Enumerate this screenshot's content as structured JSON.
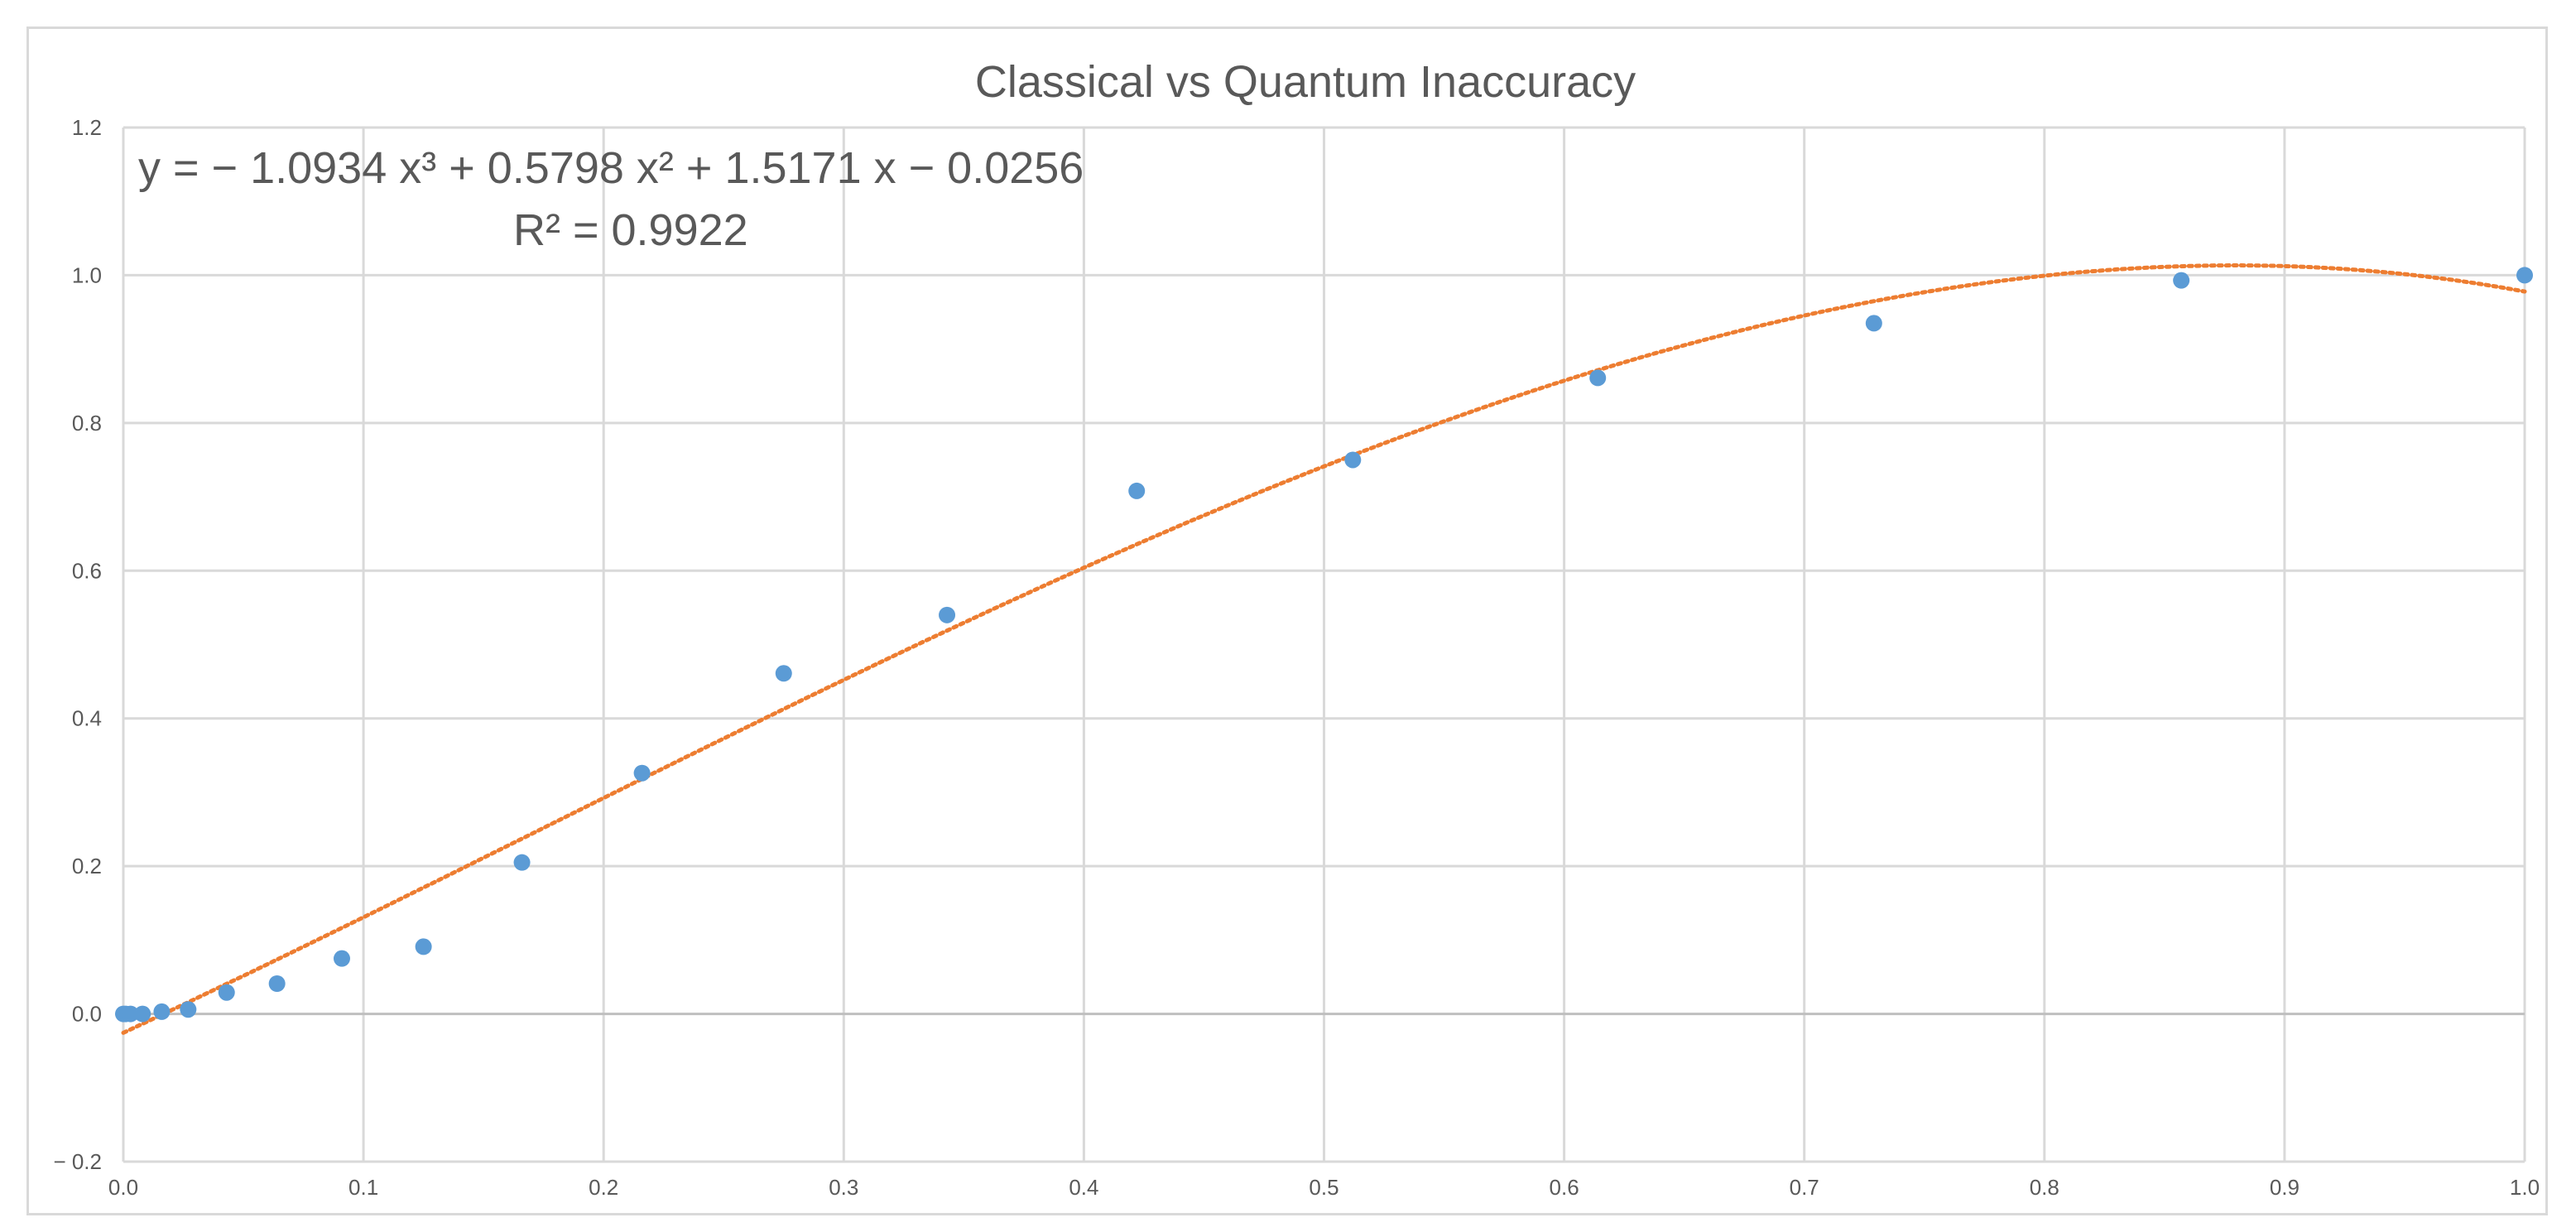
{
  "chart_data": {
    "type": "scatter",
    "title": "Classical vs Quantum Inaccuracy",
    "xlabel": "",
    "ylabel": "",
    "xlim": [
      0,
      1
    ],
    "ylim": [
      -0.2,
      1.2
    ],
    "x_ticks": [
      "0.0",
      "0.1",
      "0.2",
      "0.3",
      "0.4",
      "0.5",
      "0.6",
      "0.7",
      "0.8",
      "0.9",
      "1.0"
    ],
    "x_tick_values": [
      0,
      0.1,
      0.2,
      0.3,
      0.4,
      0.5,
      0.6,
      0.7,
      0.8,
      0.9,
      1.0
    ],
    "y_ticks": [
      "− 0.2",
      "0.0",
      "0.2",
      "0.4",
      "0.6",
      "0.8",
      "1.0",
      "1.2"
    ],
    "y_tick_values": [
      -0.2,
      0,
      0.2,
      0.4,
      0.6,
      0.8,
      1.0,
      1.2
    ],
    "grid": true,
    "legend": "none",
    "colors": {
      "points": "#5b9bd5",
      "trendline": "#ed7d31",
      "grid": "#d9d9d9",
      "text": "#595959"
    },
    "series": [
      {
        "values": [
          {
            "x": 0.0,
            "y": 0.0
          },
          {
            "x": 0.001,
            "y": 0.0
          },
          {
            "x": 0.003,
            "y": 0.0
          },
          {
            "x": 0.008,
            "y": 0.0
          },
          {
            "x": 0.016,
            "y": 0.003
          },
          {
            "x": 0.027,
            "y": 0.006
          },
          {
            "x": 0.043,
            "y": 0.029
          },
          {
            "x": 0.064,
            "y": 0.041
          },
          {
            "x": 0.091,
            "y": 0.075
          },
          {
            "x": 0.125,
            "y": 0.091
          },
          {
            "x": 0.166,
            "y": 0.205
          },
          {
            "x": 0.216,
            "y": 0.326
          },
          {
            "x": 0.275,
            "y": 0.461
          },
          {
            "x": 0.343,
            "y": 0.54
          },
          {
            "x": 0.422,
            "y": 0.708
          },
          {
            "x": 0.512,
            "y": 0.75
          },
          {
            "x": 0.614,
            "y": 0.861
          },
          {
            "x": 0.729,
            "y": 0.935
          },
          {
            "x": 0.857,
            "y": 0.993
          },
          {
            "x": 1.0,
            "y": 1.0
          }
        ]
      }
    ],
    "trendline": {
      "type": "polynomial",
      "order": 3,
      "coefficients": [
        -1.0934,
        0.5798,
        1.5171,
        -0.0256
      ],
      "equation_text": "y = − 1.0934 x³ + 0.5798 x² + 1.5171 x − 0.0256",
      "r2_text": "R² = 0.9922"
    }
  }
}
